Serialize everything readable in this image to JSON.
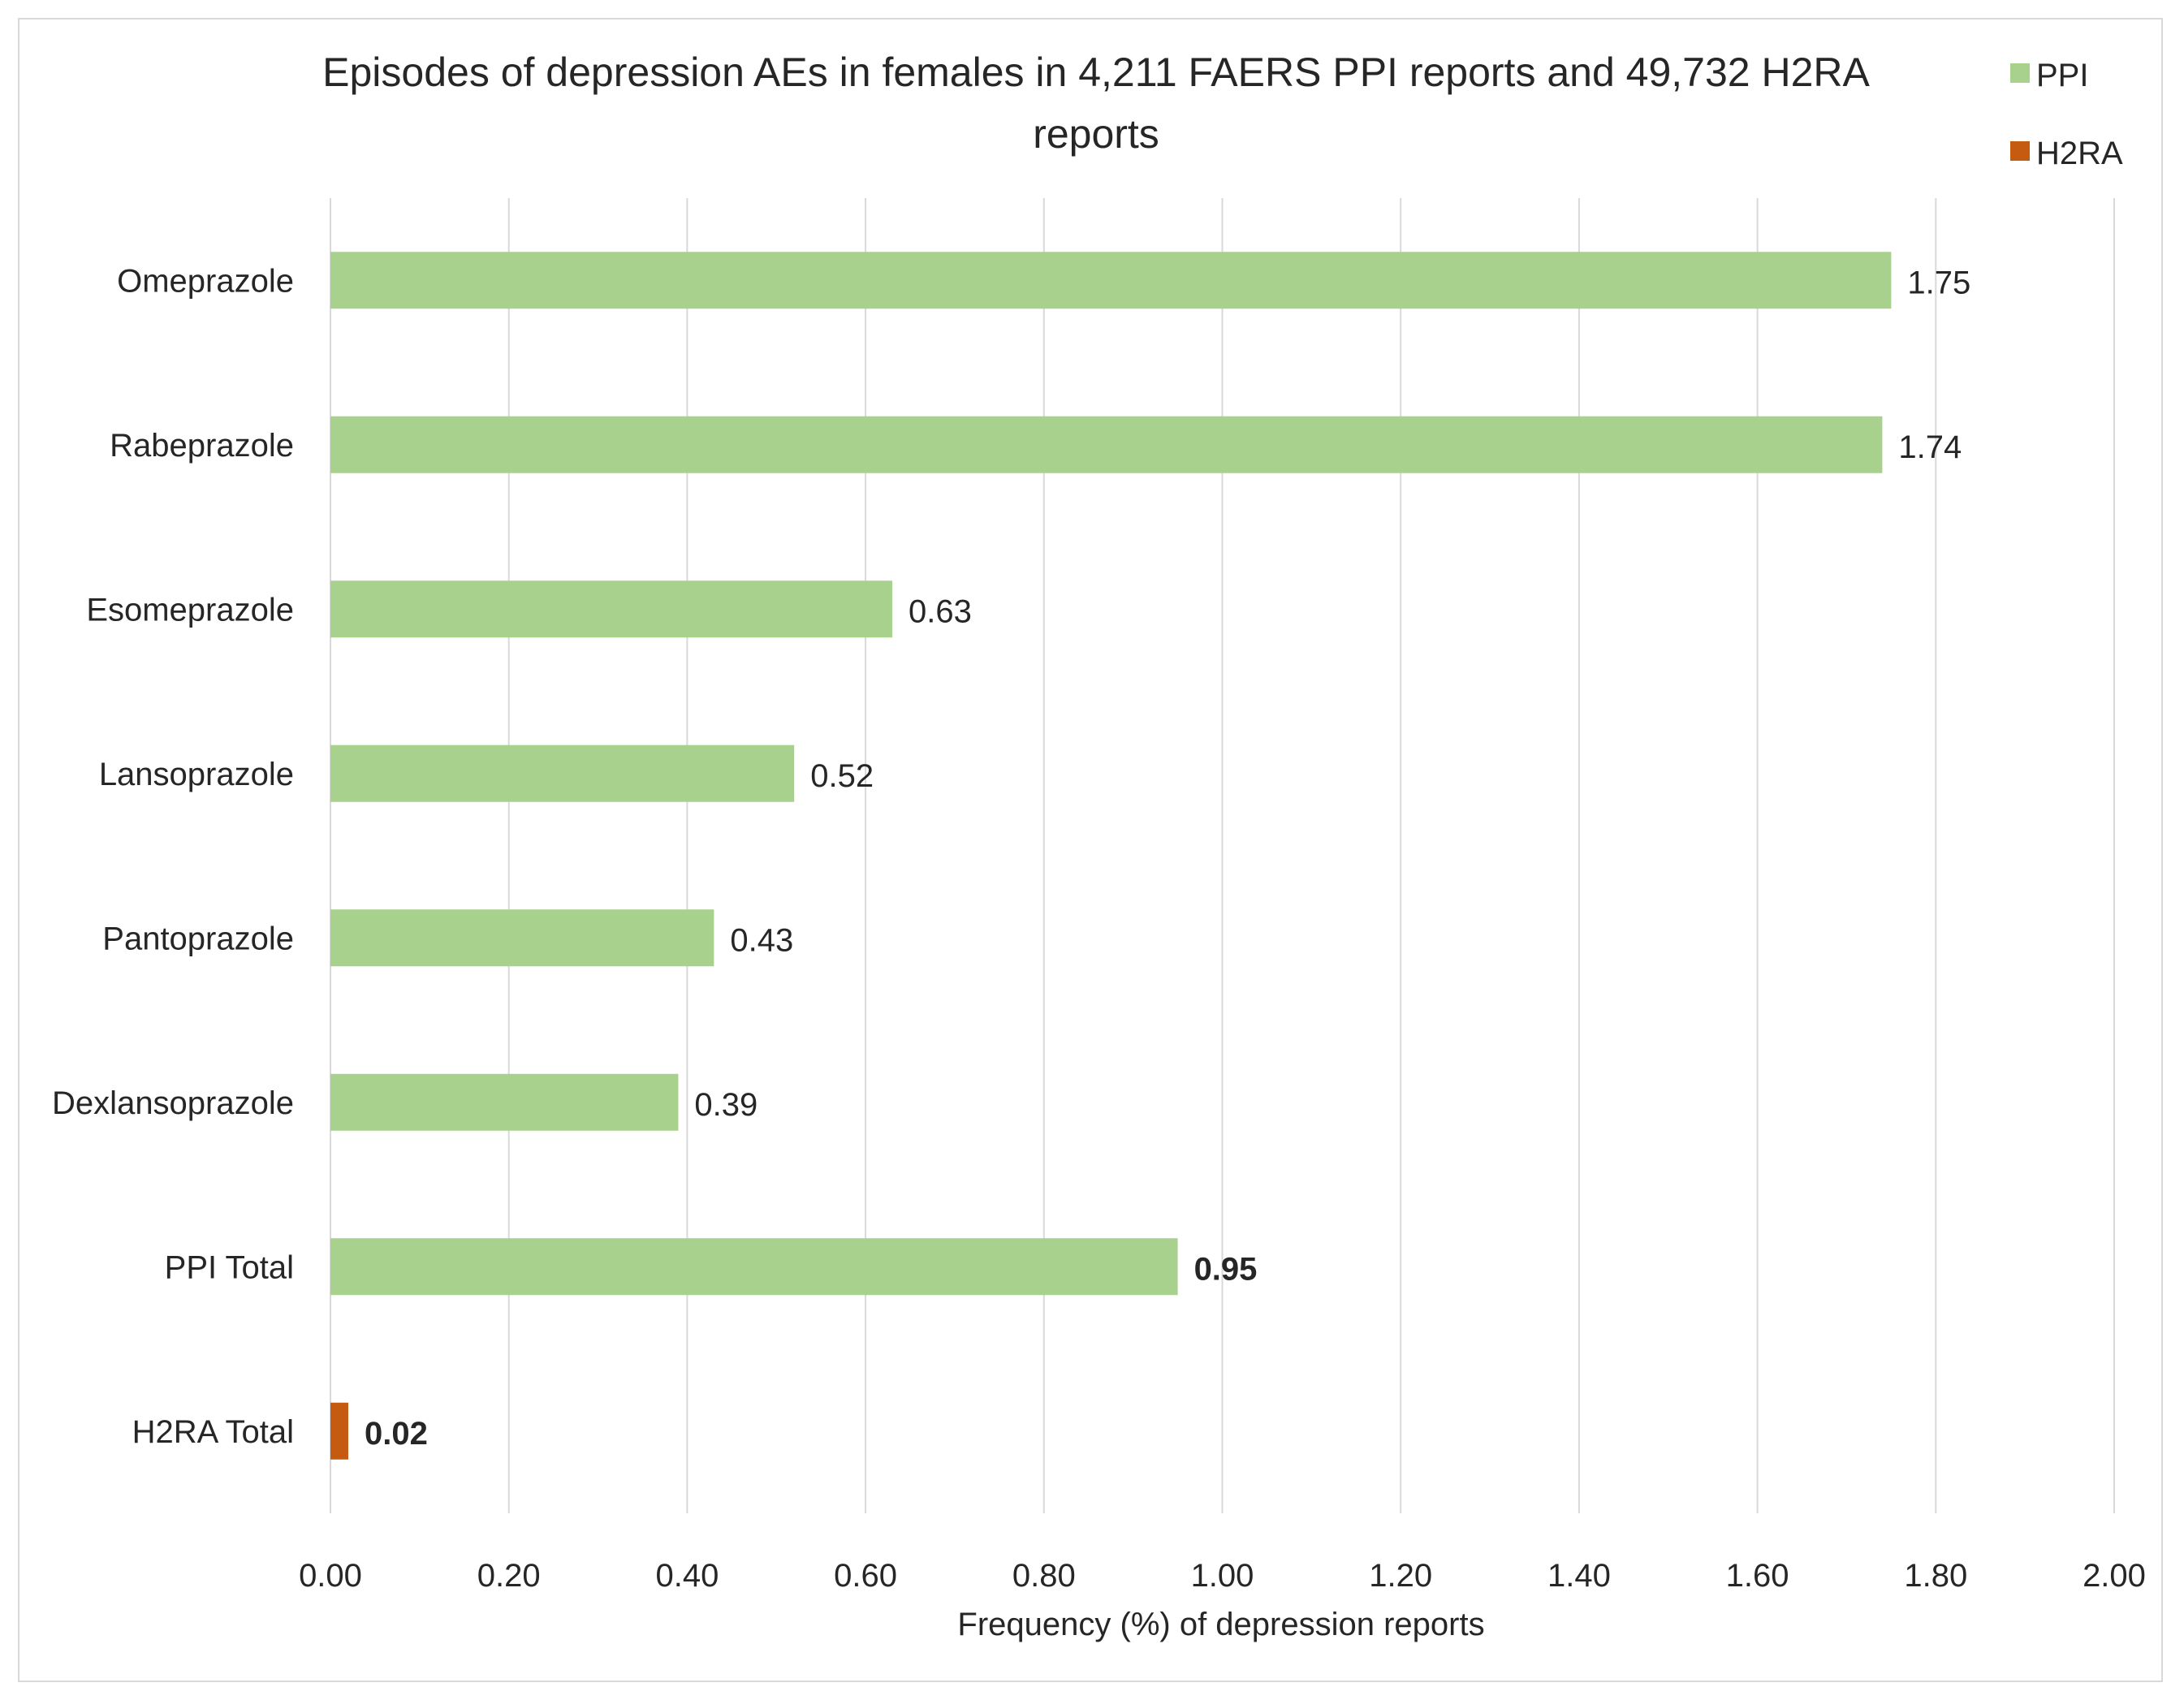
{
  "chart_data": {
    "type": "bar",
    "orientation": "horizontal",
    "title": "Episodes of depression AEs in females in 4,211 FAERS PPI reports and 49,732 H2RA reports",
    "xlabel": "Frequency (%) of depression reports",
    "ylabel": "",
    "xlim": [
      0,
      2
    ],
    "x_ticks": [
      "0.00",
      "0.20",
      "0.40",
      "0.60",
      "0.80",
      "1.00",
      "1.20",
      "1.40",
      "1.60",
      "1.80",
      "2.00"
    ],
    "grid": true,
    "legend_position": "top-right",
    "series": [
      {
        "name": "PPI",
        "color": "#a9d18e"
      },
      {
        "name": "H2RA",
        "color": "#c55a11"
      }
    ],
    "categories": [
      "Omeprazole",
      "Rabeprazole",
      "Esomeprazole",
      "Lansoprazole",
      "Pantoprazole",
      "Dexlansoprazole",
      "PPI Total",
      "H2RA Total"
    ],
    "bars": [
      {
        "category": "Omeprazole",
        "series": "PPI",
        "value": 1.75,
        "label": "1.75",
        "bold": false
      },
      {
        "category": "Rabeprazole",
        "series": "PPI",
        "value": 1.74,
        "label": "1.74",
        "bold": false
      },
      {
        "category": "Esomeprazole",
        "series": "PPI",
        "value": 0.63,
        "label": "0.63",
        "bold": false
      },
      {
        "category": "Lansoprazole",
        "series": "PPI",
        "value": 0.52,
        "label": "0.52",
        "bold": false
      },
      {
        "category": "Pantoprazole",
        "series": "PPI",
        "value": 0.43,
        "label": "0.43",
        "bold": false
      },
      {
        "category": "Dexlansoprazole",
        "series": "PPI",
        "value": 0.39,
        "label": "0.39",
        "bold": false
      },
      {
        "category": "PPI Total",
        "series": "PPI",
        "value": 0.95,
        "label": "0.95",
        "bold": true
      },
      {
        "category": "H2RA Total",
        "series": "H2RA",
        "value": 0.02,
        "label": "0.02",
        "bold": true
      }
    ]
  }
}
